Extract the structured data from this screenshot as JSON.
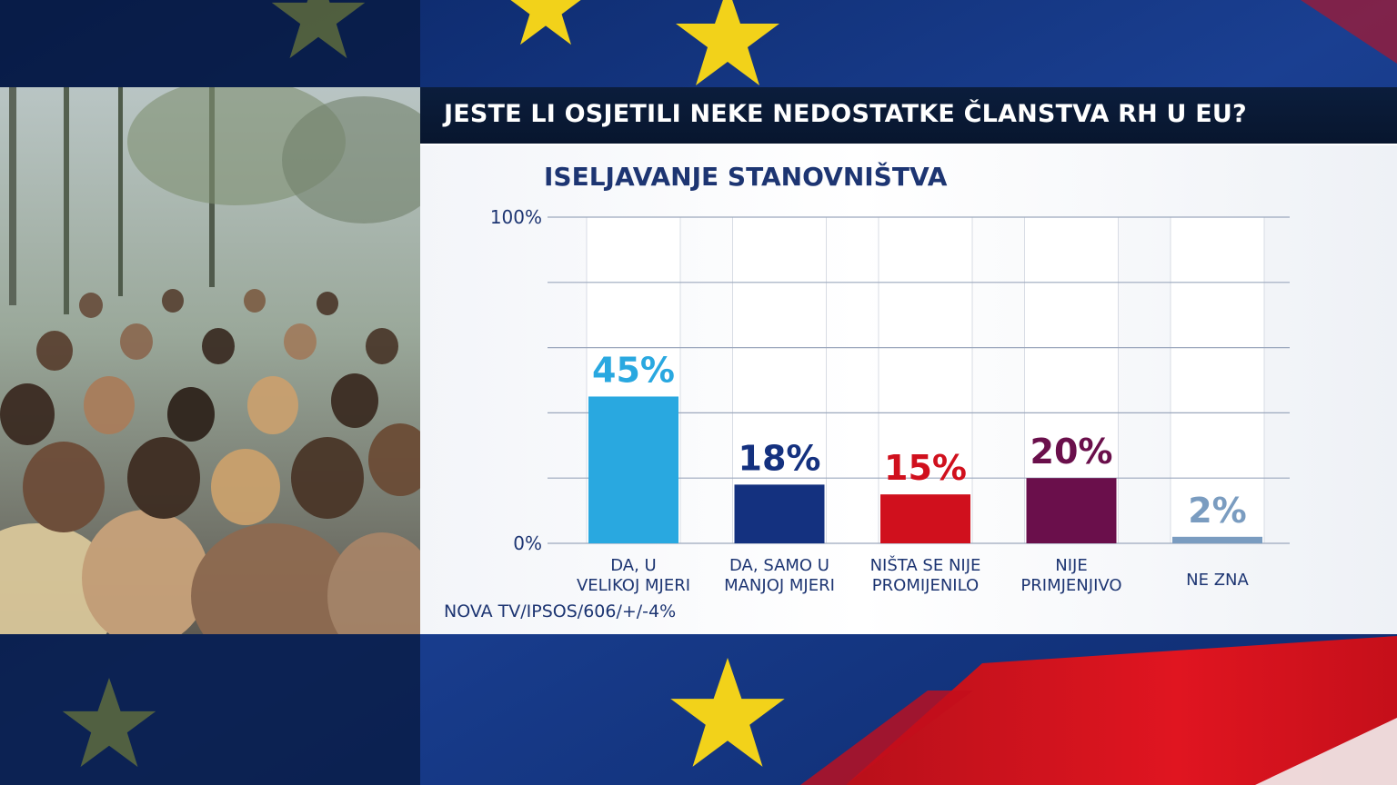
{
  "title": "JESTE LI OSJETILI NEKE NEDOSTATKE ČLANSTVA RH U EU?",
  "source": "NOVA TV/IPSOS/606/+/-4%",
  "chart_data": {
    "type": "bar",
    "title": "ISELJAVANJE STANOVNIŠTVA",
    "categories": [
      [
        "DA, U",
        "VELIKOJ MJERI"
      ],
      [
        "DA, SAMO U",
        "MANJOJ MJERI"
      ],
      [
        "NIŠTA SE NIJE",
        "PROMIJENILO"
      ],
      [
        "NIJE",
        "PRIMJENJIVO"
      ],
      [
        "NE ZNA"
      ]
    ],
    "values": [
      45,
      18,
      15,
      20,
      2
    ],
    "value_labels": [
      "45%",
      "18%",
      "15%",
      "20%",
      "2%"
    ],
    "colors": [
      "#29a8e0",
      "#14317f",
      "#d0101d",
      "#6a0f4b",
      "#7a9cc0"
    ],
    "ylim": [
      0,
      100
    ],
    "yticks": [
      0,
      100
    ],
    "ytick_labels": [
      "0%",
      "100%"
    ],
    "grid": true
  }
}
